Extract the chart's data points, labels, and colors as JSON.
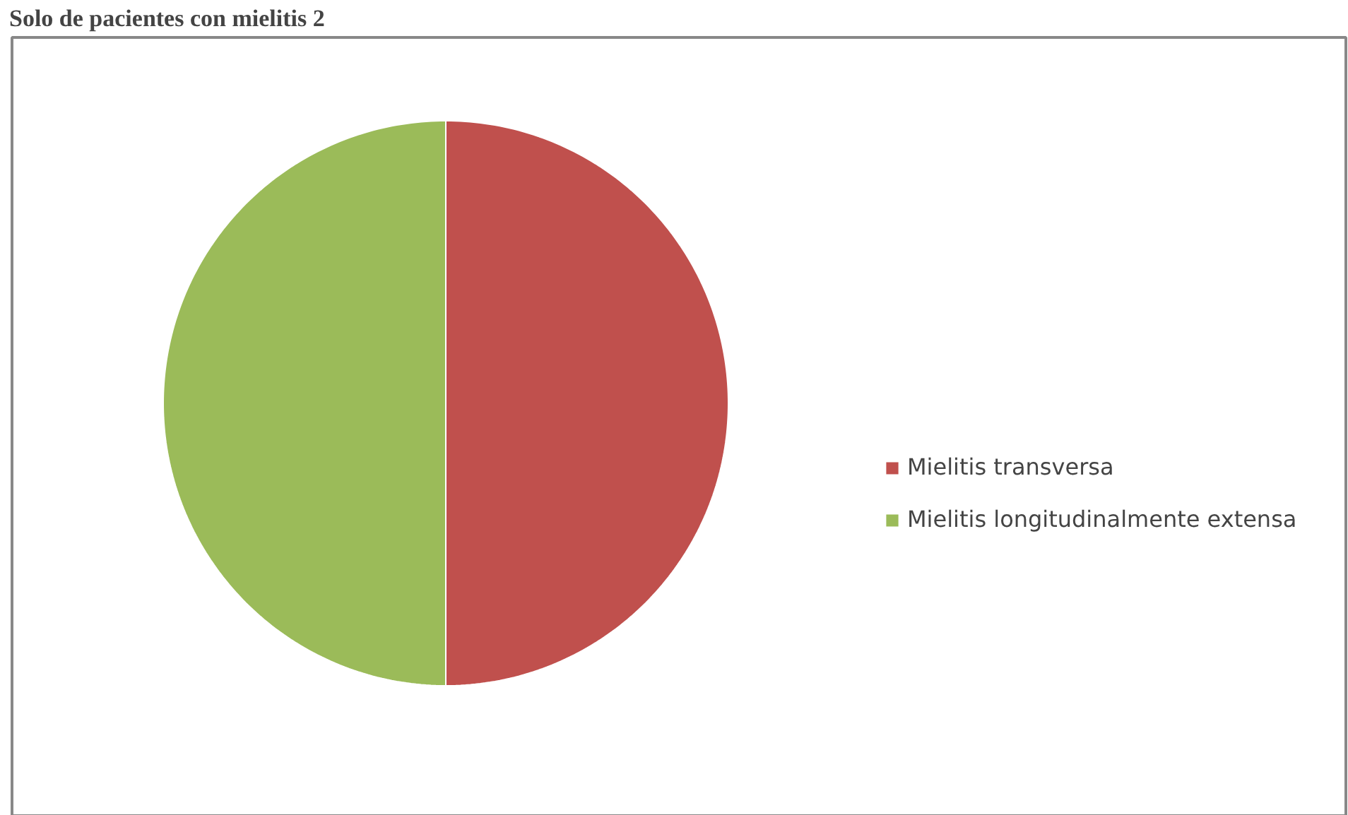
{
  "chart_data": {
    "type": "pie",
    "title": "Solo de pacientes con mielitis 2",
    "categories": [
      "Mielitis transversa",
      "Mielitis longitudinalmente extensa"
    ],
    "values": [
      50,
      50
    ],
    "colors": [
      "#c0504d",
      "#9bbb59"
    ],
    "legend": "right"
  }
}
